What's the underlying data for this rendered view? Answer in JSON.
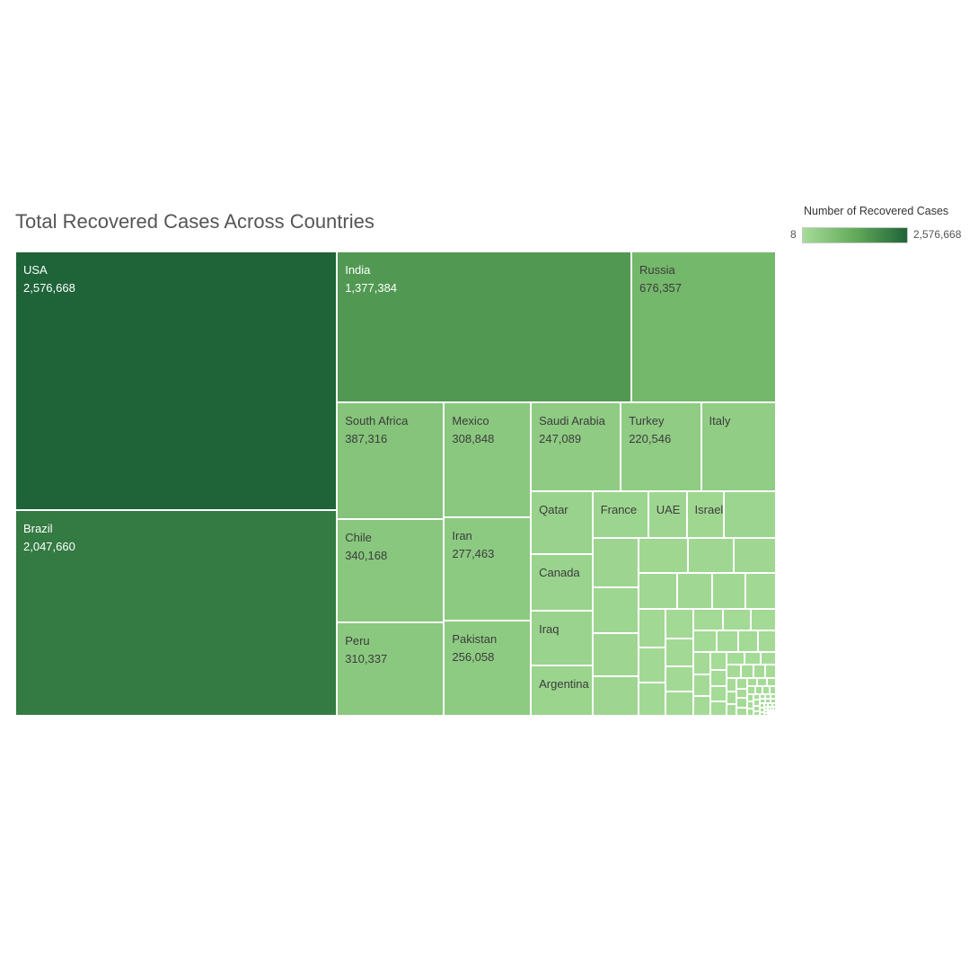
{
  "chart_data": {
    "type": "treemap",
    "title": "Total Recovered Cases Across Countries",
    "legend": {
      "title": "Number of Recovered Cases",
      "min_label": "8",
      "max_label": "2,576,668",
      "min": 8,
      "max": 2576668,
      "colors": [
        "#a6dc98",
        "#62ab5a",
        "#1f6439"
      ]
    },
    "labeled_items": [
      {
        "name": "USA",
        "value": 2576668,
        "value_label": "2,576,668"
      },
      {
        "name": "Brazil",
        "value": 2047660,
        "value_label": "2,047,660"
      },
      {
        "name": "India",
        "value": 1377384,
        "value_label": "1,377,384"
      },
      {
        "name": "Russia",
        "value": 676357,
        "value_label": "676,357"
      },
      {
        "name": "South Africa",
        "value": 387316,
        "value_label": "387,316"
      },
      {
        "name": "Chile",
        "value": 340168,
        "value_label": "340,168"
      },
      {
        "name": "Peru",
        "value": 310337,
        "value_label": "310,337"
      },
      {
        "name": "Mexico",
        "value": 308848,
        "value_label": "308,848"
      },
      {
        "name": "Iran",
        "value": 277463,
        "value_label": "277,463"
      },
      {
        "name": "Pakistan",
        "value": 256058,
        "value_label": "256,058"
      },
      {
        "name": "Saudi Arabia",
        "value": 247089,
        "value_label": "247,089"
      },
      {
        "name": "Turkey",
        "value": 220546,
        "value_label": "220,546"
      },
      {
        "name": "Italy",
        "value": 206000,
        "value_label": ""
      },
      {
        "name": "Qatar",
        "value": 120000,
        "value_label": ""
      },
      {
        "name": "Canada",
        "value": 108000,
        "value_label": ""
      },
      {
        "name": "Iraq",
        "value": 104000,
        "value_label": ""
      },
      {
        "name": "Argentina",
        "value": 96000,
        "value_label": ""
      },
      {
        "name": "France",
        "value": 81000,
        "value_label": ""
      },
      {
        "name": "UAE",
        "value": 56000,
        "value_label": ""
      },
      {
        "name": "Israel",
        "value": 54000,
        "value_label": ""
      }
    ]
  }
}
